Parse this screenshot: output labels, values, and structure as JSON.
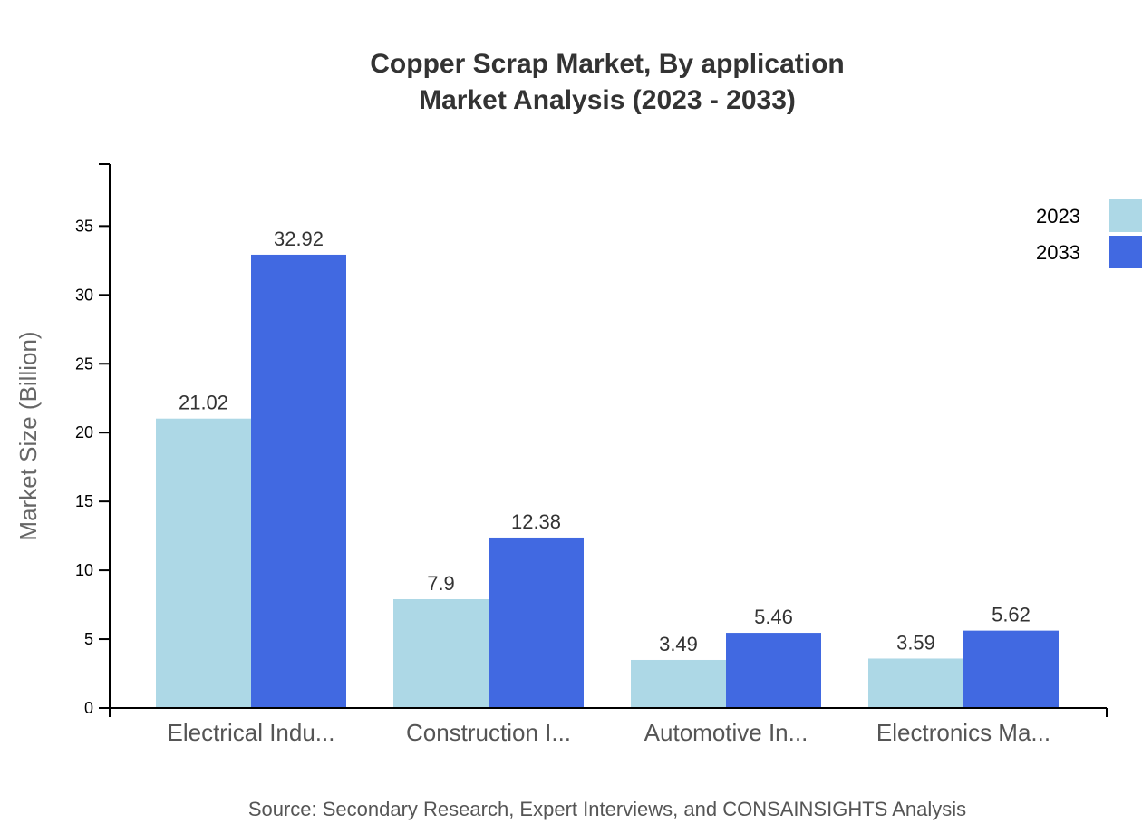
{
  "chart_data": {
    "type": "bar",
    "title": "Copper Scrap Market, By application",
    "subtitle": "Market Analysis (2023 - 2033)",
    "xlabel": "",
    "ylabel": "Market Size (Billion)",
    "ylim": [
      0,
      39.5
    ],
    "yticks": [
      0,
      5,
      10,
      15,
      20,
      25,
      30,
      35
    ],
    "grid": false,
    "legend_position": "top-right",
    "categories": [
      "Electrical Indu...",
      "Construction I...",
      "Automotive In...",
      "Electronics Ma..."
    ],
    "series": [
      {
        "name": "2023",
        "color": "#add8e6",
        "values": [
          21.02,
          7.9,
          3.49,
          3.59
        ]
      },
      {
        "name": "2033",
        "color": "#4169e1",
        "values": [
          32.92,
          12.38,
          5.46,
          5.62
        ]
      }
    ],
    "source": "Source: Secondary Research, Expert Interviews, and CONSAINSIGHTS Analysis"
  }
}
